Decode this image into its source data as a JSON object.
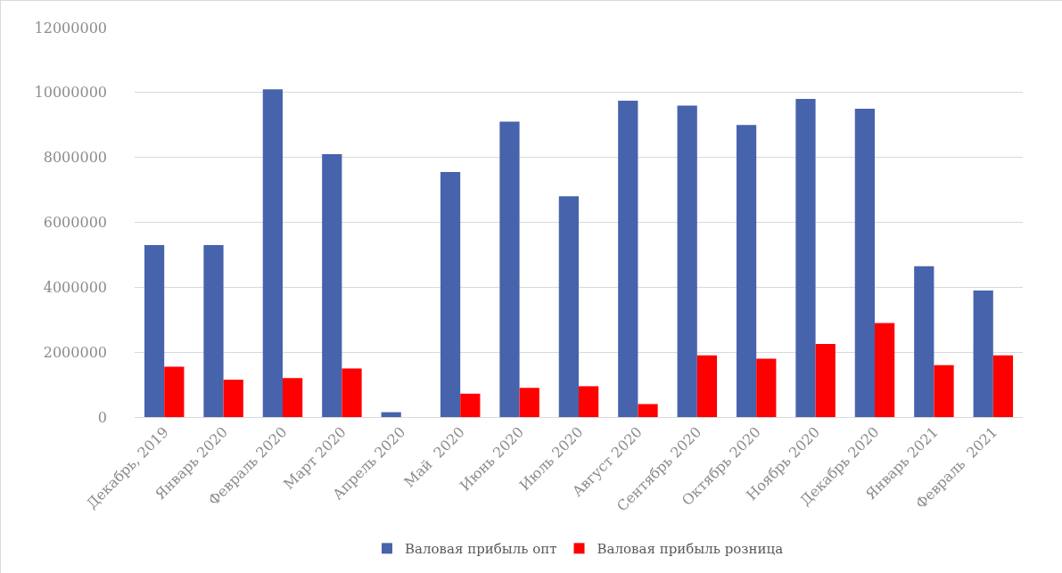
{
  "chart_data": {
    "type": "bar",
    "categories": [
      "Декабрь, 2019",
      "Январь 2020",
      "Февраль 2020",
      "Март 2020",
      "Апрель 2020",
      "Май  2020",
      "Июнь 2020",
      "Июль 2020",
      "Август 2020",
      "Сентябрь 2020",
      "Октябрь 2020",
      "Ноябрь 2020",
      "Декабрь 2020",
      "Январь 2021",
      "Февраль  2021"
    ],
    "series": [
      {
        "name": "Валовая прибыль опт",
        "color": "#4763ab",
        "values": [
          5300000,
          5300000,
          10100000,
          8100000,
          150000,
          7550000,
          9100000,
          6800000,
          9750000,
          9600000,
          9000000,
          9800000,
          9500000,
          4650000,
          3900000
        ]
      },
      {
        "name": "Валовая прибыль розница",
        "color": "#ff0000",
        "values": [
          1550000,
          1150000,
          1200000,
          1500000,
          0,
          720000,
          900000,
          950000,
          400000,
          1900000,
          1800000,
          2250000,
          2900000,
          1600000,
          1900000
        ]
      }
    ],
    "ylim": [
      0,
      12000000
    ],
    "yticks": [
      0,
      2000000,
      4000000,
      6000000,
      8000000,
      10000000,
      12000000
    ],
    "grid": "y",
    "legend": "bottom"
  }
}
